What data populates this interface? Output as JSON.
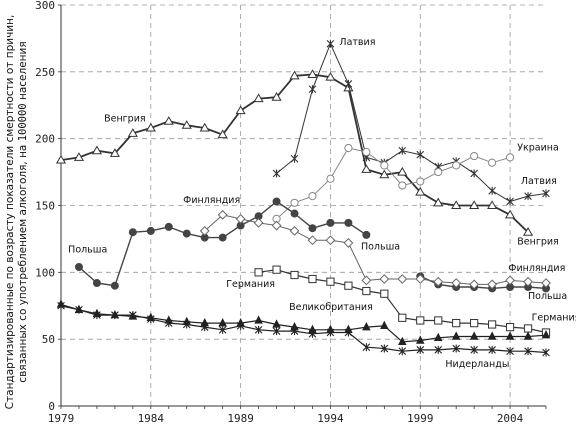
{
  "chart_data": {
    "type": "line",
    "ylabel_line1": "Стандартизированные по возрасту показатели смертности от причин,",
    "ylabel_line2_pre": "связанных со употреблением алкоголя, на ",
    "ylabel_line2_num": "100000",
    "ylabel_line2_post": " населения",
    "xlim": [
      1979,
      2006
    ],
    "ylim": [
      0,
      300
    ],
    "x_ticks": [
      1979,
      1984,
      1989,
      1994,
      1999,
      2004
    ],
    "y_ticks": [
      0,
      50,
      100,
      150,
      200,
      250,
      300
    ],
    "grid": "dashed",
    "series": [
      {
        "name": "Венгрия",
        "marker": "triangle-open",
        "color": "#333333",
        "width": 1.8,
        "x": [
          1979,
          1980,
          1981,
          1982,
          1983,
          1984,
          1985,
          1986,
          1987,
          1988,
          1989,
          1990,
          1991,
          1992,
          1993,
          1994,
          1995,
          1996,
          1997,
          1998,
          1999,
          2000,
          2001,
          2002,
          2003,
          2004,
          2005
        ],
        "y": [
          184,
          186,
          191,
          189,
          204,
          208,
          213,
          210,
          208,
          203,
          221,
          230,
          231,
          247,
          248,
          246,
          238,
          177,
          173,
          175,
          160,
          152,
          150,
          150,
          150,
          143,
          130
        ]
      },
      {
        "name": "Латвия",
        "marker": "star",
        "color": "#333333",
        "width": 1.0,
        "x": [
          1991,
          1992,
          1993,
          1994,
          1995,
          1996,
          1997,
          1998,
          1999,
          2000,
          2001,
          2002,
          2003,
          2004,
          2005,
          2006
        ],
        "y": [
          174,
          185,
          237,
          271,
          241,
          186,
          182,
          191,
          188,
          179,
          183,
          174,
          161,
          153,
          157,
          159
        ]
      },
      {
        "name": "Украина",
        "marker": "circle-open",
        "color": "#888888",
        "width": 1.0,
        "x": [
          1991,
          1992,
          1993,
          1994,
          1995,
          1996,
          1997,
          1998,
          1999,
          2000,
          2001,
          2002,
          2003,
          2004
        ],
        "y": [
          140,
          152,
          157,
          170,
          193,
          190,
          180,
          165,
          168,
          175,
          180,
          187,
          182,
          186
        ]
      },
      {
        "name": "Польша",
        "marker": "circle-filled",
        "color": "#444444",
        "width": 1.4,
        "x": [
          1980,
          1981,
          1982,
          1983,
          1984,
          1985,
          1986,
          1987,
          1988,
          1989,
          1990,
          1991,
          1992,
          1993,
          1994,
          1995,
          1996
        ],
        "y": [
          104,
          92,
          90,
          130,
          131,
          134,
          129,
          126,
          126,
          135,
          142,
          153,
          144,
          133,
          137,
          137,
          128
        ]
      },
      {
        "name": "Польша",
        "marker": "circle-filled",
        "color": "#444444",
        "width": 1.4,
        "x": [
          1999,
          2000,
          2001,
          2002,
          2003,
          2004,
          2005,
          2006
        ],
        "y": [
          97,
          91,
          89,
          89,
          88,
          89,
          89,
          88
        ]
      },
      {
        "name": "Финляндия",
        "marker": "diamond-open",
        "color": "#666666",
        "width": 1.0,
        "x": [
          1987,
          1988,
          1989,
          1990,
          1991,
          1992,
          1993,
          1994,
          1995,
          1996,
          1997,
          1998,
          1999,
          2000,
          2001,
          2002,
          2003,
          2004,
          2005,
          2006
        ],
        "y": [
          131,
          143,
          140,
          137,
          135,
          131,
          124,
          124,
          122,
          94,
          95,
          95,
          95,
          93,
          92,
          91,
          91,
          94,
          93,
          92
        ]
      },
      {
        "name": "Германия",
        "marker": "square-open",
        "color": "#333333",
        "width": 1.2,
        "x": [
          1990,
          1991,
          1992,
          1993,
          1994,
          1995,
          1996,
          1997,
          1998,
          1999,
          2000,
          2001,
          2002,
          2003,
          2004,
          2005,
          2006
        ],
        "y": [
          100,
          102,
          98,
          95,
          93,
          90,
          86,
          84,
          66,
          64,
          64,
          62,
          62,
          61,
          59,
          58,
          55
        ]
      },
      {
        "name": "Великобритания",
        "marker": "triangle-filled",
        "color": "#222222",
        "width": 1.2,
        "x": [
          1979,
          1980,
          1981,
          1982,
          1983,
          1984,
          1985,
          1986,
          1987,
          1988,
          1989,
          1990,
          1991,
          1992,
          1993,
          1994,
          1995,
          1996,
          1997,
          1998,
          1999,
          2000,
          2001,
          2002,
          2003,
          2004,
          2005,
          2006
        ],
        "y": [
          76,
          72,
          69,
          68,
          67,
          66,
          64,
          63,
          62,
          62,
          62,
          64,
          61,
          59,
          57,
          57,
          57,
          59,
          60,
          48,
          49,
          51,
          52,
          52,
          52,
          52,
          52,
          53
        ]
      },
      {
        "name": "Нидерланды",
        "marker": "star",
        "color": "#222222",
        "width": 1.2,
        "x": [
          1979,
          1980,
          1981,
          1982,
          1983,
          1984,
          1985,
          1986,
          1987,
          1988,
          1989,
          1990,
          1991,
          1992,
          1993,
          1994,
          1995,
          1996,
          1997,
          1998,
          1999,
          2000,
          2001,
          2002,
          2003,
          2004,
          2005,
          2006
        ],
        "y": [
          75,
          72,
          68,
          68,
          68,
          65,
          62,
          61,
          59,
          57,
          60,
          57,
          56,
          56,
          54,
          55,
          55,
          44,
          43,
          41,
          42,
          42,
          43,
          42,
          42,
          41,
          41,
          40
        ]
      }
    ],
    "labels": [
      {
        "text": "Венгрия",
        "x": 1981.4,
        "y": 213,
        "anchor": "start"
      },
      {
        "text": "Латвия",
        "x": 1994.5,
        "y": 270,
        "anchor": "start"
      },
      {
        "text": "Украина",
        "x": 2004.4,
        "y": 191,
        "anchor": "start"
      },
      {
        "text": "Латвия",
        "x": 2004.6,
        "y": 166,
        "anchor": "start"
      },
      {
        "text": "Венгрия",
        "x": 2004.4,
        "y": 121,
        "anchor": "start"
      },
      {
        "text": "Финляндия",
        "x": 1985.8,
        "y": 152,
        "anchor": "start"
      },
      {
        "text": "Польша",
        "x": 1979.4,
        "y": 115,
        "anchor": "start"
      },
      {
        "text": "Польша",
        "x": 1995.7,
        "y": 117,
        "anchor": "start"
      },
      {
        "text": "Финляндия",
        "x": 2003.9,
        "y": 101,
        "anchor": "start"
      },
      {
        "text": "Германия",
        "x": 1988.2,
        "y": 89,
        "anchor": "start"
      },
      {
        "text": "Польша",
        "x": 2005.0,
        "y": 80,
        "anchor": "start"
      },
      {
        "text": "Великобритания",
        "x": 1991.7,
        "y": 72,
        "anchor": "start"
      },
      {
        "text": "Германия",
        "x": 2005.2,
        "y": 64,
        "anchor": "start"
      },
      {
        "text": "Нидерланды",
        "x": 2000.4,
        "y": 29,
        "anchor": "start"
      }
    ]
  }
}
